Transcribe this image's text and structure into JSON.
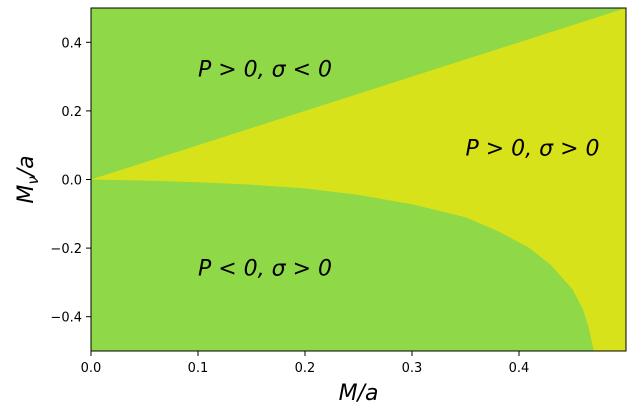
{
  "chart_data": {
    "type": "heatmap",
    "xlabel": "M/a",
    "ylabel": "M_ν/a",
    "xlim": [
      0.0,
      0.5
    ],
    "ylim": [
      -0.5,
      0.5
    ],
    "x_ticks": [
      0.0,
      0.1,
      0.2,
      0.3,
      0.4
    ],
    "x_tick_labels": [
      "0.0",
      "0.1",
      "0.2",
      "0.3",
      "0.4"
    ],
    "y_ticks": [
      -0.4,
      -0.2,
      0.0,
      0.2,
      0.4
    ],
    "y_tick_labels": [
      "−0.4",
      "−0.2",
      "0.0",
      "0.2",
      "0.4"
    ],
    "grid": false,
    "colors": {
      "green": "#8fd848",
      "yellow": "#d8e21b",
      "frame": "#000000"
    },
    "regions": [
      {
        "label": "P > 0, σ < 0",
        "color": "green",
        "label_at": [
          0.1,
          0.3
        ]
      },
      {
        "label": "P > 0, σ > 0",
        "color": "yellow",
        "label_at": [
          0.35,
          0.07
        ]
      },
      {
        "label": "P < 0, σ > 0",
        "color": "green",
        "label_at": [
          0.1,
          -0.28
        ]
      }
    ],
    "upper_boundary": {
      "x": [
        0.0,
        0.5
      ],
      "y": [
        0.0,
        0.5
      ]
    },
    "lower_boundary": {
      "x": [
        0.0,
        0.05,
        0.1,
        0.15,
        0.2,
        0.25,
        0.3,
        0.35,
        0.38,
        0.41,
        0.43,
        0.45,
        0.46,
        0.465,
        0.47
      ],
      "y": [
        0.0,
        -0.003,
        -0.008,
        -0.015,
        -0.026,
        -0.045,
        -0.072,
        -0.11,
        -0.15,
        -0.2,
        -0.25,
        -0.32,
        -0.38,
        -0.43,
        -0.5
      ]
    }
  }
}
